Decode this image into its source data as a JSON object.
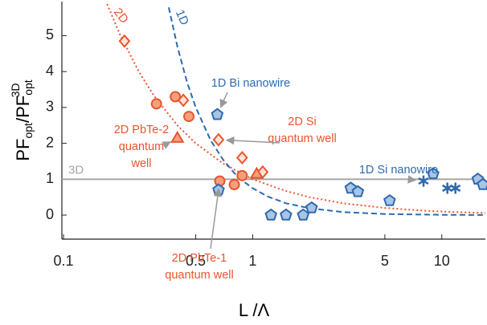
{
  "chart_data": {
    "type": "scatter",
    "x_label": "L /Λ",
    "y_label": [
      "PF",
      "opt",
      "/PF",
      "opt",
      "3D"
    ],
    "x_log": true,
    "xlim": [
      0.098,
      17
    ],
    "ylim": [
      -0.67,
      5.95
    ],
    "xticks": [
      0.1,
      0.5,
      1,
      5,
      10
    ],
    "yticks": [
      0,
      1,
      2,
      3,
      4,
      5
    ],
    "grid": false,
    "hline": {
      "value": 1,
      "label": "3D",
      "color": "#a6a6a6"
    },
    "curves": [
      {
        "label": "2D",
        "color": "#e8552e",
        "style": "dotted",
        "x": [
          0.17,
          0.2,
          0.25,
          0.3,
          0.4,
          0.5,
          0.7,
          1,
          1.5,
          2,
          3,
          5,
          8,
          12,
          17
        ],
        "values": [
          5.88,
          5,
          4,
          3.33,
          2.5,
          2,
          1.43,
          1,
          0.67,
          0.5,
          0.33,
          0.2,
          0.125,
          0.083,
          0.059
        ]
      },
      {
        "label": "1D",
        "color": "#2e6aad",
        "style": "dashed",
        "x": [
          0.36,
          0.4,
          0.45,
          0.5,
          0.6,
          0.7,
          0.8,
          0.9,
          1,
          1.2,
          1.5,
          2,
          3,
          5,
          10,
          17
        ],
        "values": [
          5.79,
          4.69,
          3.7,
          3,
          2.08,
          1.53,
          1.17,
          0.93,
          0.75,
          0.52,
          0.33,
          0.19,
          0.083,
          0.03,
          0.0075,
          0.0026
        ]
      }
    ],
    "series": [
      {
        "marker": "circle",
        "color": "#e8552e",
        "fill": "#f4a07e",
        "x": [
          0.31,
          0.39,
          0.46,
          0.67,
          0.8,
          0.88
        ],
        "values": [
          3.1,
          3.3,
          2.75,
          0.95,
          0.85,
          1.1
        ]
      },
      {
        "marker": "diamond",
        "color": "#e8552e",
        "fill": "#fde3d6",
        "x": [
          0.21,
          0.43,
          0.66,
          0.88,
          1.13
        ],
        "values": [
          4.85,
          3.2,
          2.1,
          1.6,
          1.2
        ]
      },
      {
        "marker": "triangle",
        "color": "#e8552e",
        "fill": "#f4a07e",
        "x": [
          0.4,
          1.05
        ],
        "values": [
          2.15,
          1.15
        ]
      },
      {
        "marker": "pentagon",
        "color": "#2e6aad",
        "fill": "#a9c4e4",
        "x": [
          0.65,
          0.66,
          1.25,
          1.5,
          1.85,
          2.05,
          3.3,
          3.6,
          5.3,
          9,
          15.5,
          16.5
        ],
        "values": [
          2.8,
          0.7,
          0,
          0,
          0,
          0.2,
          0.75,
          0.65,
          0.4,
          1.15,
          1.0,
          0.85
        ]
      },
      {
        "marker": "star",
        "color": "#2e6aad",
        "fill": "#2e6aad",
        "x": [
          8,
          10.7,
          11.8
        ],
        "values": [
          0.95,
          0.75,
          0.75
        ]
      }
    ],
    "annotations": [
      {
        "text": [
          "1D Bi nanowire"
        ],
        "color": "#2e6aad"
      },
      {
        "text": [
          "2D Si",
          "quantum well"
        ],
        "color": "#e8552e"
      },
      {
        "text": [
          "2D PbTe-2",
          "quantum",
          "well"
        ],
        "color": "#e8552e"
      },
      {
        "text": [
          "2D PbTe-1",
          "quantum well"
        ],
        "color": "#e8552e"
      },
      {
        "text": [
          "1D Si nanowire"
        ],
        "color": "#2e6aad"
      }
    ]
  }
}
